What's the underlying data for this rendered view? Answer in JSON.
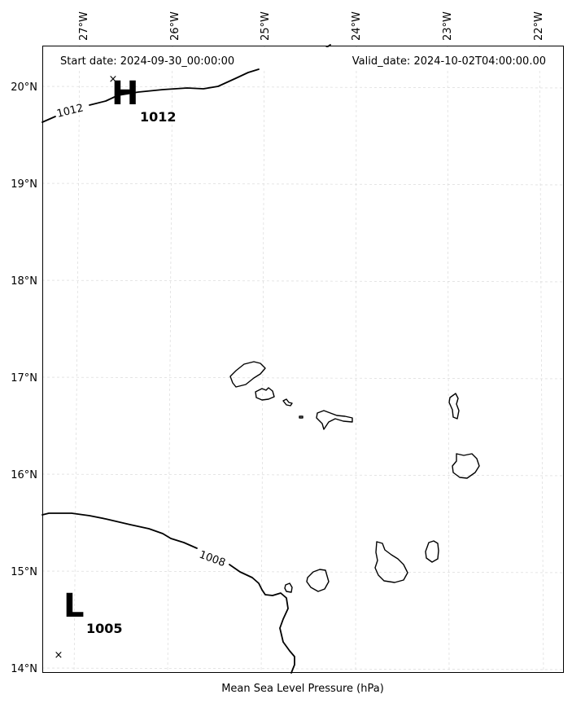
{
  "header": {
    "start_label": "Start date: 2024-09-30_00:00:00",
    "valid_label": "Valid_date: 2024-10-02T04:00:00.00"
  },
  "footer": {
    "caption": "Mean Sea Level Pressure (hPa)"
  },
  "axes": {
    "lon_labels": [
      "27°W",
      "26°W",
      "25°W",
      "24°W",
      "23°W",
      "22°W"
    ],
    "lat_labels": [
      "20°N",
      "19°N",
      "18°N",
      "17°N",
      "16°N",
      "15°N",
      "14°N"
    ]
  },
  "pressure_centers": [
    {
      "type": "H",
      "value": "1012",
      "lon": -26.43,
      "lat": 20.07
    },
    {
      "type": "L",
      "value": "1005",
      "lon": -27.17,
      "lat": 14.15
    }
  ],
  "contours": [
    {
      "value": "1012",
      "label": "1012"
    },
    {
      "value": "1008",
      "label": "1008"
    }
  ],
  "colors": {
    "contour": "#000000",
    "coastline": "#000000",
    "grid": "#cccccc",
    "background": "#ffffff"
  }
}
